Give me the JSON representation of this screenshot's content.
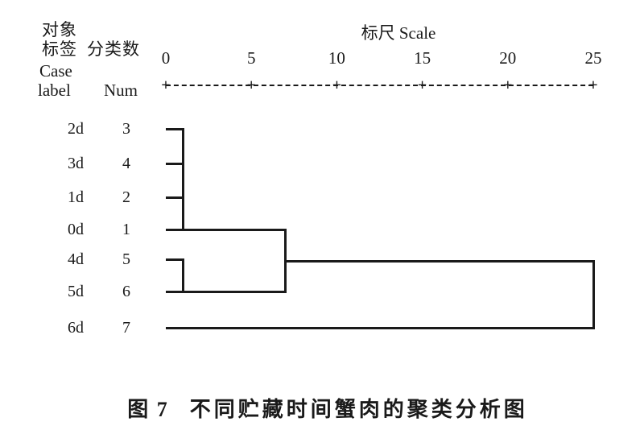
{
  "page": {
    "background": "#ffffff",
    "ink": "#1a1a1a"
  },
  "header": {
    "zh_line1": "对象",
    "zh_line2": "标签",
    "zh_num": "分类数",
    "en_line1": "Case",
    "en_line2": "label",
    "en_num": "Num"
  },
  "axis": {
    "title": "标尺 Scale",
    "ticks": [
      "0",
      "5",
      "10",
      "15",
      "20",
      "25"
    ],
    "tick_marker": "+"
  },
  "rows": [
    {
      "label": "2d",
      "num": "3"
    },
    {
      "label": "3d",
      "num": "4"
    },
    {
      "label": "1d",
      "num": "2"
    },
    {
      "label": "0d",
      "num": "1"
    },
    {
      "label": "4d",
      "num": "5"
    },
    {
      "label": "5d",
      "num": "6"
    },
    {
      "label": "6d",
      "num": "7"
    }
  ],
  "caption": {
    "figure_label": "图 7",
    "text": "不同贮藏时间蟹肉的聚类分析图"
  },
  "chart_data": {
    "type": "dendrogram",
    "orientation": "horizontal",
    "axis_title": "标尺 Scale",
    "xlim": [
      0,
      25
    ],
    "xticks": [
      0,
      5,
      10,
      15,
      20,
      25
    ],
    "leaf_order": [
      "2d",
      "3d",
      "1d",
      "0d",
      "4d",
      "5d",
      "6d"
    ],
    "leaf_numbers": [
      3,
      4,
      2,
      1,
      5,
      6,
      7
    ],
    "merges": [
      {
        "cluster": [
          "2d",
          "3d",
          "1d",
          "0d"
        ],
        "distance": 1
      },
      {
        "cluster": [
          "4d",
          "5d"
        ],
        "distance": 1
      },
      {
        "cluster": [
          "2d+3d+1d+0d",
          "4d+5d"
        ],
        "distance": 7
      },
      {
        "cluster": [
          "2d+3d+1d+0d+4d+5d",
          "6d"
        ],
        "distance": 25
      }
    ],
    "caption": "图 7 不同贮藏时间蟹肉的聚类分析图"
  }
}
